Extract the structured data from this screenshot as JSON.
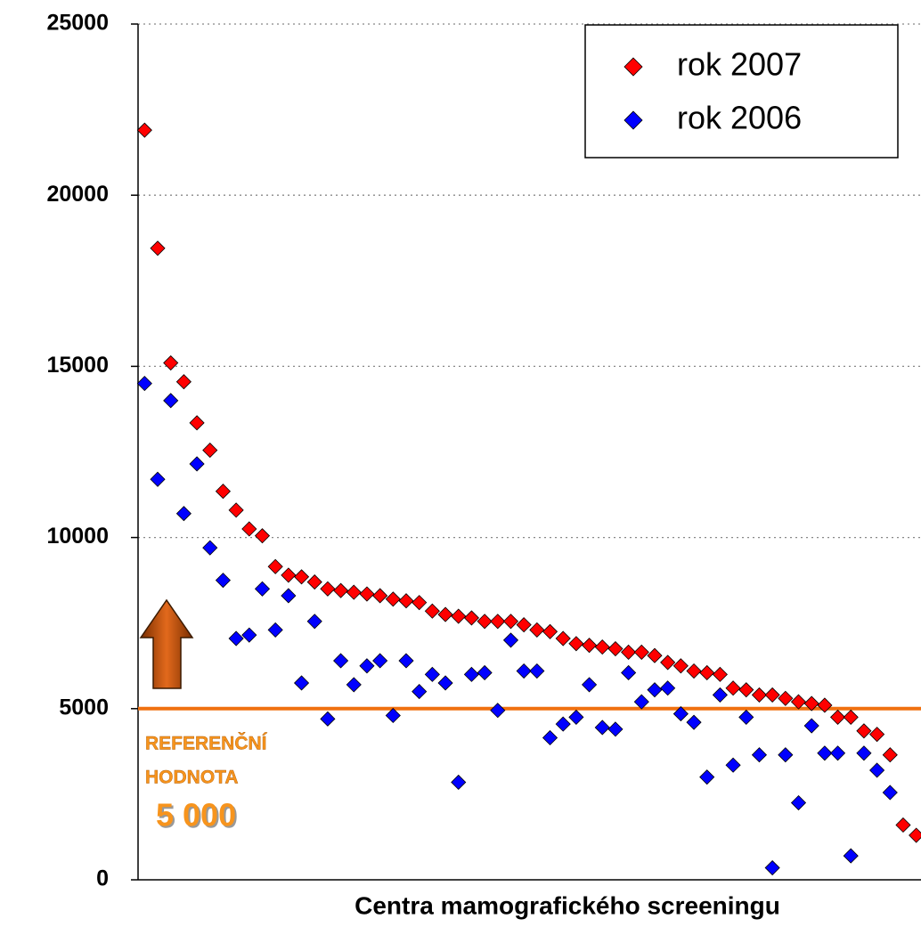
{
  "chart_data": {
    "type": "scatter",
    "x": [
      1,
      2,
      3,
      4,
      5,
      6,
      7,
      8,
      9,
      10,
      11,
      12,
      13,
      14,
      15,
      16,
      17,
      18,
      19,
      20,
      21,
      22,
      23,
      24,
      25,
      26,
      27,
      28,
      29,
      30,
      31,
      32,
      33,
      34,
      35,
      36,
      37,
      38,
      39,
      40,
      41,
      42,
      43,
      44,
      45,
      46,
      47,
      48,
      49,
      50,
      51,
      52,
      53,
      54,
      55,
      56,
      57,
      58,
      59,
      60
    ],
    "xlim": [
      0.5,
      60.5
    ],
    "xlabel": "Centra mamografického screeningu",
    "ylim": [
      0,
      25000
    ],
    "yticks": [
      0,
      5000,
      10000,
      15000,
      20000,
      25000
    ],
    "grid": true,
    "legend": "upper right",
    "series": [
      {
        "name": "rok 2007",
        "color": "#ff0000",
        "values": [
          21900,
          18450,
          15100,
          14550,
          13350,
          12550,
          11350,
          10800,
          10250,
          10050,
          9150,
          8900,
          8850,
          8700,
          8500,
          8450,
          8400,
          8350,
          8300,
          8200,
          8150,
          8100,
          7850,
          7750,
          7700,
          7650,
          7550,
          7550,
          7550,
          7450,
          7300,
          7250,
          7050,
          6900,
          6850,
          6800,
          6750,
          6650,
          6650,
          6550,
          6350,
          6250,
          6100,
          6050,
          6000,
          5600,
          5550,
          5400,
          5400,
          5300,
          5200,
          5150,
          5100,
          4750,
          4750,
          4350,
          4250,
          3650,
          1600,
          1300
        ]
      },
      {
        "name": "rok 2006",
        "color": "#0000ff",
        "values": [
          14500,
          11700,
          14000,
          10700,
          12150,
          9700,
          8750,
          7050,
          7150,
          8500,
          7300,
          8300,
          5750,
          7550,
          4700,
          6400,
          5700,
          6250,
          6400,
          4800,
          6400,
          5500,
          6000,
          5750,
          2850,
          6000,
          6050,
          4950,
          7000,
          6100,
          6100,
          4150,
          4550,
          4750,
          5700,
          4450,
          4400,
          6050,
          5200,
          5550,
          5600,
          4850,
          4600,
          3000,
          5400,
          3350,
          4750,
          3650,
          350,
          3650,
          2250,
          4500,
          3700,
          3700,
          700,
          3700,
          3200,
          2550,
          null,
          null
        ]
      }
    ],
    "reference_line": {
      "value": 5000,
      "color": "#f07010"
    },
    "annotation": {
      "lines": [
        "REFERENČNÍ",
        "HODNOTA"
      ],
      "value_label": "5 000",
      "color": "#f7941d"
    }
  }
}
